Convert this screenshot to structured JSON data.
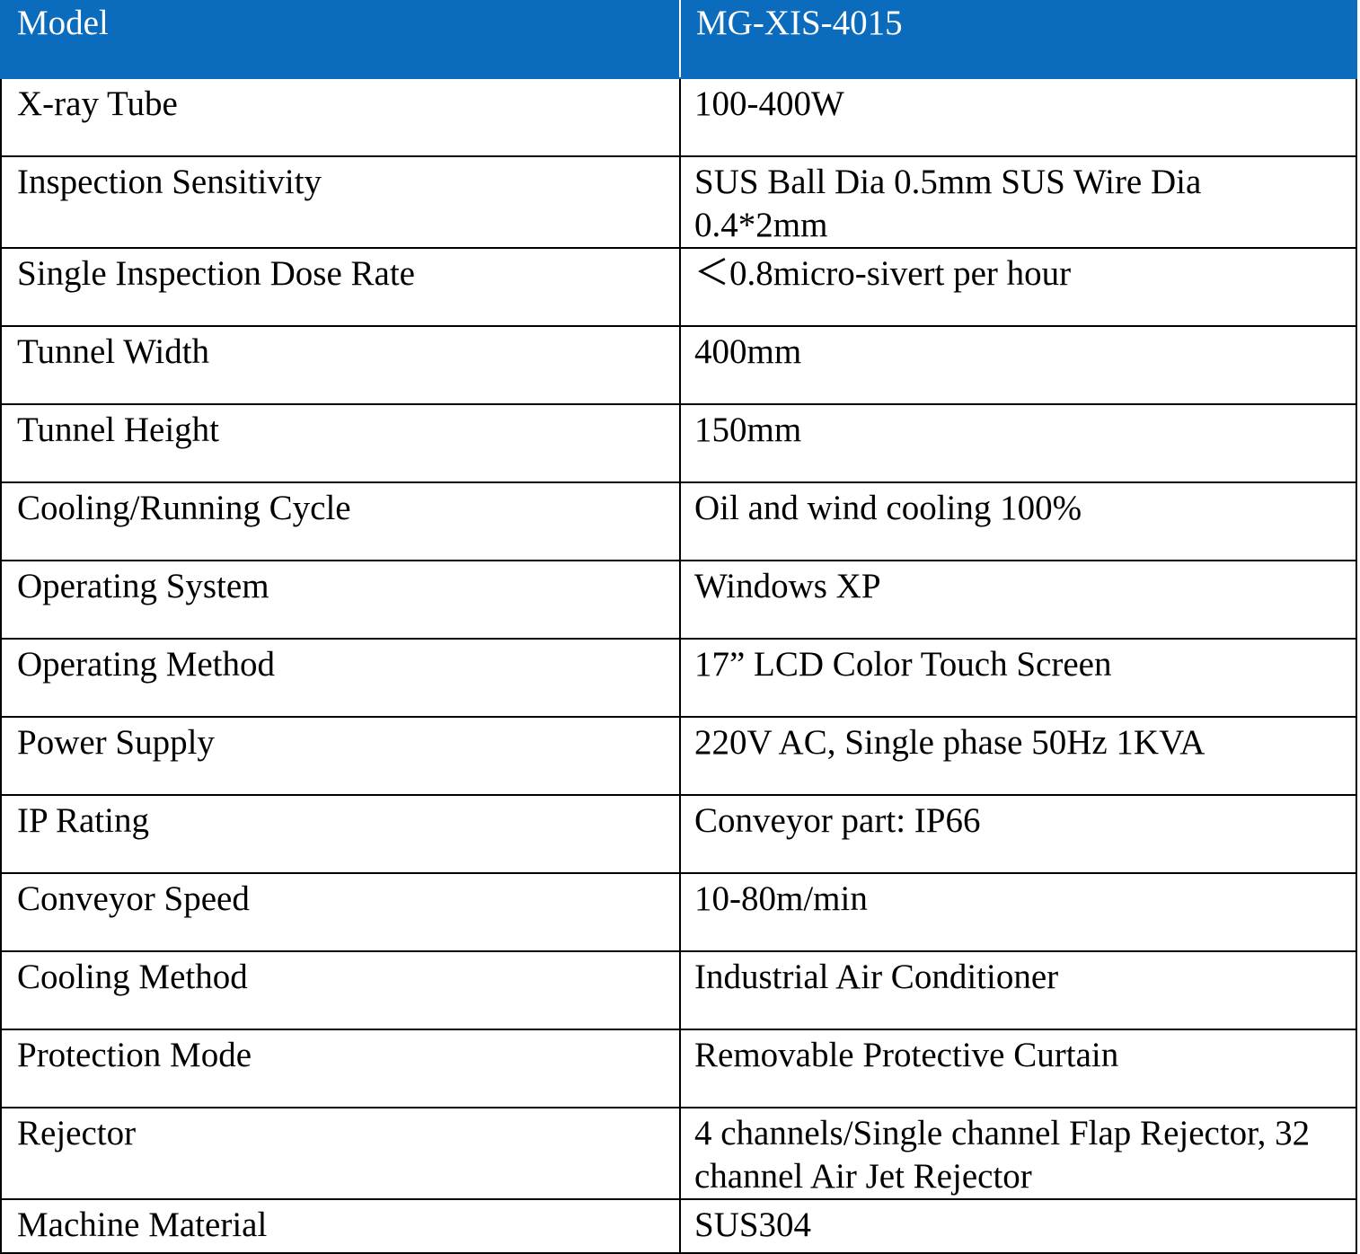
{
  "header": {
    "label": "Model",
    "value": "MG-XIS-4015"
  },
  "colors": {
    "header_bg": "#0b6bbd",
    "header_text": "#ffffff",
    "border": "#000000"
  },
  "rows": [
    {
      "label": "X-ray Tube",
      "value": "100-400W"
    },
    {
      "label": "Inspection Sensitivity",
      "value": "SUS Ball Dia 0.5mm SUS Wire Dia 0.4*2mm"
    },
    {
      "label": "Single Inspection Dose Rate",
      "value": "＜0.8micro-sivert per hour"
    },
    {
      "label": "Tunnel Width",
      "value": "400mm"
    },
    {
      "label": "Tunnel Height",
      "value": "150mm"
    },
    {
      "label": "Cooling/Running Cycle",
      "value": "Oil and wind cooling 100%"
    },
    {
      "label": "Operating System",
      "value": "Windows XP"
    },
    {
      "label": "Operating Method",
      "value": "17” LCD Color Touch Screen"
    },
    {
      "label": "Power Supply",
      "value": "220V AC, Single phase 50Hz  1KVA"
    },
    {
      "label": "IP Rating",
      "value": "Conveyor part: IP66"
    },
    {
      "label": "Conveyor Speed",
      "value": "10-80m/min"
    },
    {
      "label": "Cooling Method",
      "value": "Industrial Air Conditioner"
    },
    {
      "label": "Protection Mode",
      "value": "Removable Protective Curtain"
    },
    {
      "label": "Rejector",
      "value": "4 channels/Single channel Flap Rejector, 32 channel Air Jet Rejector"
    },
    {
      "label": "Machine Material",
      "value": "SUS304"
    }
  ]
}
